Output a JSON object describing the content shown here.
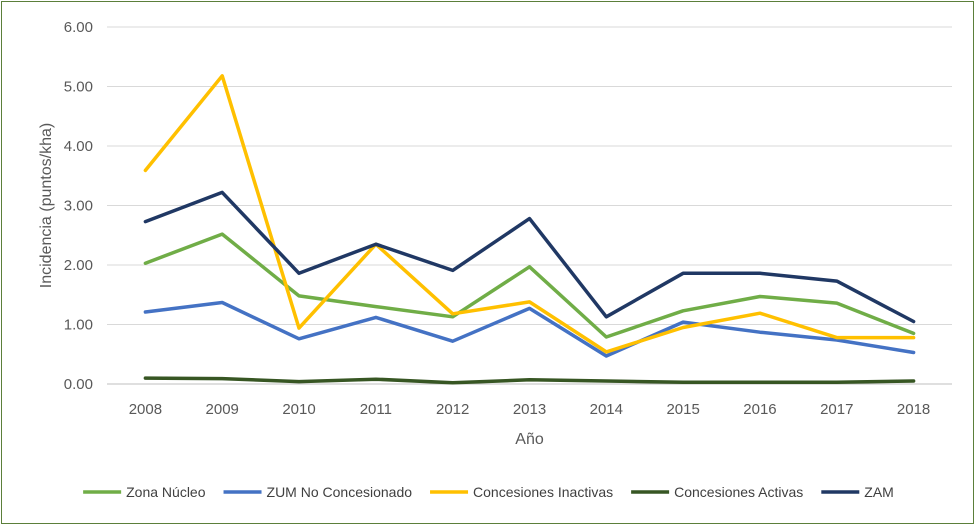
{
  "chart_data": {
    "type": "line",
    "title": "",
    "xlabel": "Año",
    "ylabel": "Incidencia (puntos/kha)",
    "ylim": [
      0,
      6
    ],
    "y_ticks": [
      "0.00",
      "1.00",
      "2.00",
      "3.00",
      "4.00",
      "5.00",
      "6.00"
    ],
    "grid": true,
    "legend_position": "bottom",
    "categories": [
      "2008",
      "2009",
      "2010",
      "2011",
      "2012",
      "2013",
      "2014",
      "2015",
      "2016",
      "2017",
      "2018"
    ],
    "series": [
      {
        "name": "Zona Núcleo",
        "color": "#70ad47",
        "values": [
          2.03,
          2.52,
          1.48,
          1.3,
          1.13,
          1.97,
          0.79,
          1.23,
          1.47,
          1.36,
          0.85
        ]
      },
      {
        "name": "ZUM No Concesionado",
        "color": "#4472c4",
        "values": [
          1.21,
          1.37,
          0.76,
          1.12,
          0.72,
          1.27,
          0.47,
          1.04,
          0.87,
          0.74,
          0.53
        ]
      },
      {
        "name": "Concesiones Inactivas",
        "color": "#ffc000",
        "values": [
          3.59,
          5.18,
          0.94,
          2.35,
          1.18,
          1.38,
          0.54,
          0.95,
          1.19,
          0.78,
          0.78
        ]
      },
      {
        "name": "Concesiones Activas",
        "color": "#375623",
        "values": [
          0.1,
          0.09,
          0.04,
          0.08,
          0.02,
          0.07,
          0.05,
          0.03,
          0.03,
          0.03,
          0.05
        ]
      },
      {
        "name": "ZAM",
        "color": "#203864",
        "values": [
          2.73,
          3.22,
          1.86,
          2.35,
          1.91,
          2.78,
          1.13,
          1.86,
          1.86,
          1.73,
          1.05
        ]
      }
    ]
  }
}
